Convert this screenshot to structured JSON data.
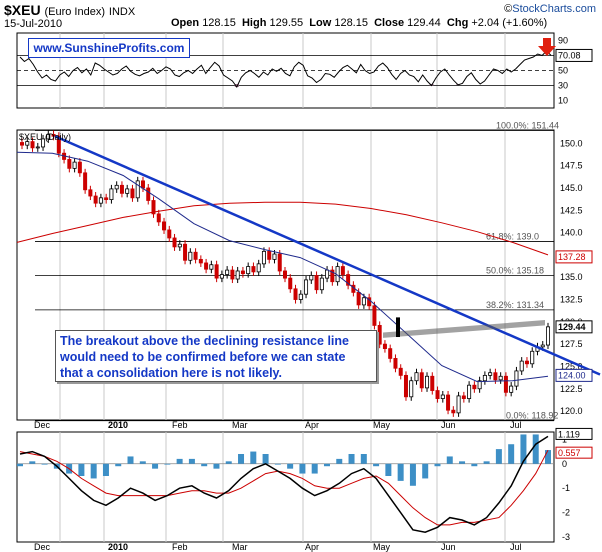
{
  "header": {
    "symbol": "$XEU",
    "name": "(Euro Index)",
    "exchange": "INDX",
    "date": "15-Jul-2010",
    "open_label": "Open",
    "open": "128.15",
    "high_label": "High",
    "high": "129.55",
    "low_label": "Low",
    "low": "128.15",
    "close_label": "Close",
    "close": "129.44",
    "chg_label": "Chg",
    "chg": "+2.04 (+1.60%)",
    "watermark_prefix": "©",
    "watermark": "StockCharts.com",
    "arrow_direction": "up"
  },
  "site_label": "www.SunshineProfits.com",
  "annotation": {
    "line1": "The breakout above the declining resistance line",
    "line2": "would need to be confirmed before we can state",
    "line3": "that a consolidation here is not likely."
  },
  "colors": {
    "accent_blue": "#1438c6",
    "ma_red": "#cc0000",
    "ma_blue": "#1f2a8c",
    "candle_red": "#cc0000",
    "macd_hist": "#3d8fc6"
  },
  "chart_data": [
    {
      "type": "line",
      "name": "rsi",
      "ylim": [
        0,
        100
      ],
      "yticks": [
        10,
        30,
        50,
        70,
        90
      ],
      "reference_lines": [
        70,
        50,
        30
      ],
      "last_value_label": "70.08",
      "values": [
        68,
        62,
        66,
        58,
        48,
        40,
        44,
        38,
        36,
        44,
        48,
        42,
        50,
        54,
        47,
        52,
        44,
        60,
        57,
        52,
        48,
        44,
        46,
        52,
        56,
        49,
        45,
        43,
        46,
        48,
        53,
        46,
        50,
        55,
        52,
        44,
        42,
        47,
        50,
        46,
        52,
        57,
        46,
        54,
        61,
        56,
        44,
        40,
        36,
        28,
        41,
        47,
        50,
        46,
        41,
        48,
        44,
        52,
        49,
        53,
        46,
        43,
        55,
        61,
        57,
        43,
        40,
        34,
        38,
        46,
        45,
        41,
        48,
        54,
        57,
        52,
        47,
        58,
        50,
        46,
        48,
        56,
        60,
        54,
        45,
        38,
        46,
        50,
        44,
        42,
        35,
        44,
        36,
        30,
        40,
        48,
        52,
        44,
        37,
        31,
        33,
        42,
        47,
        38,
        32,
        36,
        44,
        52,
        50,
        46,
        52,
        48,
        52,
        58,
        64,
        66,
        68,
        72,
        70,
        76,
        70.08
      ]
    },
    {
      "type": "candlestick",
      "name": "$XEU (Daily)",
      "ylim": [
        119,
        151.5
      ],
      "yticks": [
        120.0,
        122.5,
        125.0,
        127.5,
        130.0,
        132.5,
        135.0,
        137.5,
        140.0,
        142.5,
        145.0,
        147.5,
        150.0
      ],
      "last_value_label": "129.44",
      "close": [
        149.8,
        150.2,
        149.5,
        149.6,
        150.5,
        151.0,
        150.8,
        148.9,
        148.2,
        147.2,
        147.9,
        146.7,
        144.8,
        144.1,
        143.3,
        143.9,
        143.7,
        144.9,
        145.3,
        144.4,
        144.9,
        143.9,
        145.8,
        145.0,
        143.6,
        142.1,
        141.2,
        140.3,
        139.4,
        138.4,
        138.7,
        136.9,
        137.8,
        137.0,
        136.6,
        135.9,
        136.4,
        134.9,
        135.3,
        135.8,
        134.8,
        135.7,
        135.4,
        136.2,
        135.6,
        136.5,
        137.9,
        137.0,
        137.6,
        135.7,
        134.9,
        133.7,
        132.5,
        133.1,
        134.7,
        135.2,
        133.6,
        134.9,
        135.8,
        134.5,
        136.2,
        135.3,
        134.1,
        133.3,
        131.9,
        132.7,
        131.8,
        129.6,
        127.5,
        127.0,
        125.9,
        124.8,
        124.0,
        121.6,
        123.4,
        124.3,
        122.6,
        123.9,
        122.3,
        121.4,
        121.8,
        120.1,
        119.8,
        121.7,
        121.4,
        122.9,
        122.5,
        123.4,
        124.0,
        124.3,
        123.5,
        123.9,
        122.1,
        122.8,
        124.5,
        125.6,
        125.3,
        126.7,
        127.2,
        127.4,
        129.44
      ],
      "moving_averages": [
        {
          "name": "MA red",
          "color": "#cc0000",
          "values": [
            138.9,
            139.9,
            140.8,
            141.7,
            142.4,
            143.0,
            143.3,
            143.4,
            143.4,
            143.2,
            142.7,
            142.0,
            141.1,
            140.1,
            138.9,
            137.5
          ]
        },
        {
          "name": "MA blue",
          "color": "#1f2a8c",
          "values": [
            149.0,
            148.9,
            148.0,
            146.4,
            143.8,
            141.0,
            139.1,
            138.1,
            137.2,
            135.4,
            132.3,
            128.7,
            125.1,
            123.3,
            123.4,
            123.9
          ]
        }
      ],
      "resistance_line": {
        "from": [
          "Dec",
          150.8
        ],
        "to": [
          "Jul",
          125.0
        ]
      },
      "fibonacci": [
        {
          "label": "100.0%: 151.44",
          "value": 151.44
        },
        {
          "label": "61.8%: 139.0",
          "value": 139.0
        },
        {
          "label": "50.0%: 135.18",
          "value": 135.18
        },
        {
          "label": "38.2%: 131.34",
          "value": 131.34
        },
        {
          "label": "0.0%: 118.92",
          "value": 118.92
        }
      ],
      "reference_labels": [
        "137.28",
        "124.00"
      ],
      "xticks": [
        "Dec",
        "2010",
        "Feb",
        "Mar",
        "Apr",
        "May",
        "Jun",
        "Jul"
      ]
    },
    {
      "type": "line",
      "name": "macd",
      "ylim": [
        -3.2,
        1.3
      ],
      "yticks": [
        1,
        0,
        -1,
        -2,
        -3
      ],
      "last_value_labels": [
        "1.119",
        "0.557"
      ],
      "macd": [
        0.4,
        0.5,
        0.3,
        -0.1,
        -0.6,
        -1.1,
        -1.5,
        -1.7,
        -1.4,
        -1.0,
        -1.2,
        -1.5,
        -1.3,
        -1.0,
        -0.9,
        -1.2,
        -1.4,
        -1.1,
        -0.6,
        -0.2,
        0.0,
        -0.3,
        -0.6,
        -1.0,
        -1.3,
        -1.1,
        -0.8,
        -0.4,
        -0.2,
        -0.6,
        -1.3,
        -2.0,
        -2.7,
        -2.8,
        -2.6,
        -2.2,
        -2.3,
        -2.5,
        -2.2,
        -1.6,
        -0.9,
        0.1,
        0.8,
        1.119
      ],
      "signal": [
        0.5,
        0.4,
        0.3,
        0.1,
        -0.2,
        -0.6,
        -0.9,
        -1.2,
        -1.3,
        -1.3,
        -1.3,
        -1.3,
        -1.3,
        -1.2,
        -1.1,
        -1.1,
        -1.2,
        -1.2,
        -1.0,
        -0.7,
        -0.4,
        -0.3,
        -0.4,
        -0.6,
        -0.9,
        -1.0,
        -1.0,
        -0.8,
        -0.6,
        -0.5,
        -0.8,
        -1.3,
        -1.8,
        -2.2,
        -2.5,
        -2.5,
        -2.4,
        -2.4,
        -2.3,
        -2.2,
        -1.7,
        -1.1,
        -0.4,
        0.557
      ],
      "xticks": [
        "Dec",
        "2010",
        "Feb",
        "Mar",
        "Apr",
        "May",
        "Jun",
        "Jul"
      ]
    }
  ]
}
